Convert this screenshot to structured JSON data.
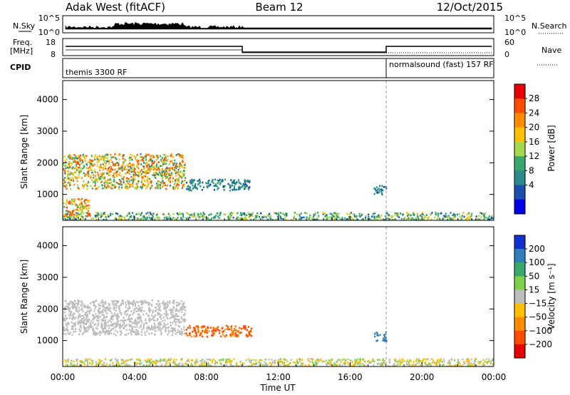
{
  "header": {
    "radar": "Adak West (fitACF)",
    "beam": "Beam 12",
    "date": "12/Oct/2015"
  },
  "nsky_panel": {
    "left_label": "N.Sky",
    "right_label": "N.Search",
    "left_ticks": [
      "10^5",
      "10^0"
    ],
    "right_ticks": [
      "10^5",
      "10^0"
    ]
  },
  "freq_panel": {
    "left_label_1": "Freq.",
    "left_label_2": "[MHz]",
    "right_label": "Nave",
    "left_ticks": [
      "18",
      "8"
    ],
    "right_ticks": [
      "60",
      "0"
    ]
  },
  "cpid": {
    "label": "CPID",
    "modes": [
      "themis 3300 RF",
      "normalsound (fast) 157 RF"
    ]
  },
  "power_colorbar": {
    "label": "Power [dB]",
    "ticks": [
      "28",
      "24",
      "20",
      "16",
      "12",
      "8",
      "4"
    ],
    "colors": [
      "#e60000",
      "#ff4d00",
      "#ff8c00",
      "#ffc000",
      "#a6d94a",
      "#3aa86b",
      "#2a8a8a",
      "#1a4fb0",
      "#0000e6"
    ]
  },
  "velocity_colorbar": {
    "label": "Velocity [m s⁻¹]",
    "ticks": [
      "200",
      "100",
      "50",
      "15",
      "−15",
      "−50",
      "−100",
      "−200"
    ],
    "colors": [
      "#1030d0",
      "#2f7ec0",
      "#3aa86b",
      "#7ed04a",
      "#bdbdbd",
      "#ffc000",
      "#ff8c00",
      "#ff4d00",
      "#e60000"
    ]
  },
  "chart_data": [
    {
      "type": "heatmap",
      "name": "power",
      "ylabel": "Slant Range [km]",
      "xlabel": "Time UT",
      "y_ticks": [
        "1000",
        "2000",
        "3000",
        "4000"
      ],
      "ylim": [
        180,
        4600
      ],
      "xlim_hours": [
        0,
        24
      ],
      "x_ticks": [
        "00:00",
        "04:00",
        "08:00",
        "12:00",
        "16:00",
        "20:00",
        "00:00"
      ],
      "mode_change_hour": 18.0,
      "echo_regions": [
        {
          "feature": "E-region / ground scatter band",
          "hours": [
            0,
            24
          ],
          "range_km": [
            200,
            450
          ],
          "power_db": [
            4,
            20
          ]
        },
        {
          "feature": "F-region scatter",
          "hours": [
            0,
            6.8
          ],
          "range_km": [
            1200,
            2300
          ],
          "power_db": [
            8,
            30
          ]
        },
        {
          "feature": "Near-range scatter",
          "hours": [
            0,
            1.5
          ],
          "range_km": [
            300,
            900
          ],
          "power_db": [
            10,
            30
          ]
        },
        {
          "feature": "Patch",
          "hours": [
            6.8,
            10.5
          ],
          "range_km": [
            1150,
            1500
          ],
          "power_db": [
            4,
            12
          ]
        },
        {
          "feature": "Patch",
          "hours": [
            17.3,
            18.0
          ],
          "range_km": [
            1000,
            1300
          ],
          "power_db": [
            4,
            10
          ]
        }
      ]
    },
    {
      "type": "heatmap",
      "name": "velocity",
      "ylabel": "Slant Range [km]",
      "xlabel": "Time UT",
      "y_ticks": [
        "1000",
        "2000",
        "3000",
        "4000"
      ],
      "ylim": [
        180,
        4600
      ],
      "xlim_hours": [
        0,
        24
      ],
      "x_ticks": [
        "00:00",
        "04:00",
        "08:00",
        "12:00",
        "16:00",
        "20:00",
        "00:00"
      ],
      "echo_regions": [
        {
          "feature": "Low velocity (grey)",
          "hours": [
            0,
            6.8
          ],
          "range_km": [
            1200,
            2300
          ],
          "velocity_ms": [
            -15,
            15
          ]
        },
        {
          "feature": "Patch",
          "hours": [
            6.8,
            10.5
          ],
          "range_km": [
            1150,
            1500
          ],
          "velocity_ms": [
            -200,
            -50
          ]
        },
        {
          "feature": "Near-range band",
          "hours": [
            0,
            24
          ],
          "range_km": [
            200,
            450
          ],
          "velocity_ms": [
            -50,
            50
          ]
        },
        {
          "feature": "Patch",
          "hours": [
            17.3,
            18.0
          ],
          "range_km": [
            1000,
            1300
          ],
          "velocity_ms": [
            100,
            200
          ]
        }
      ]
    }
  ]
}
